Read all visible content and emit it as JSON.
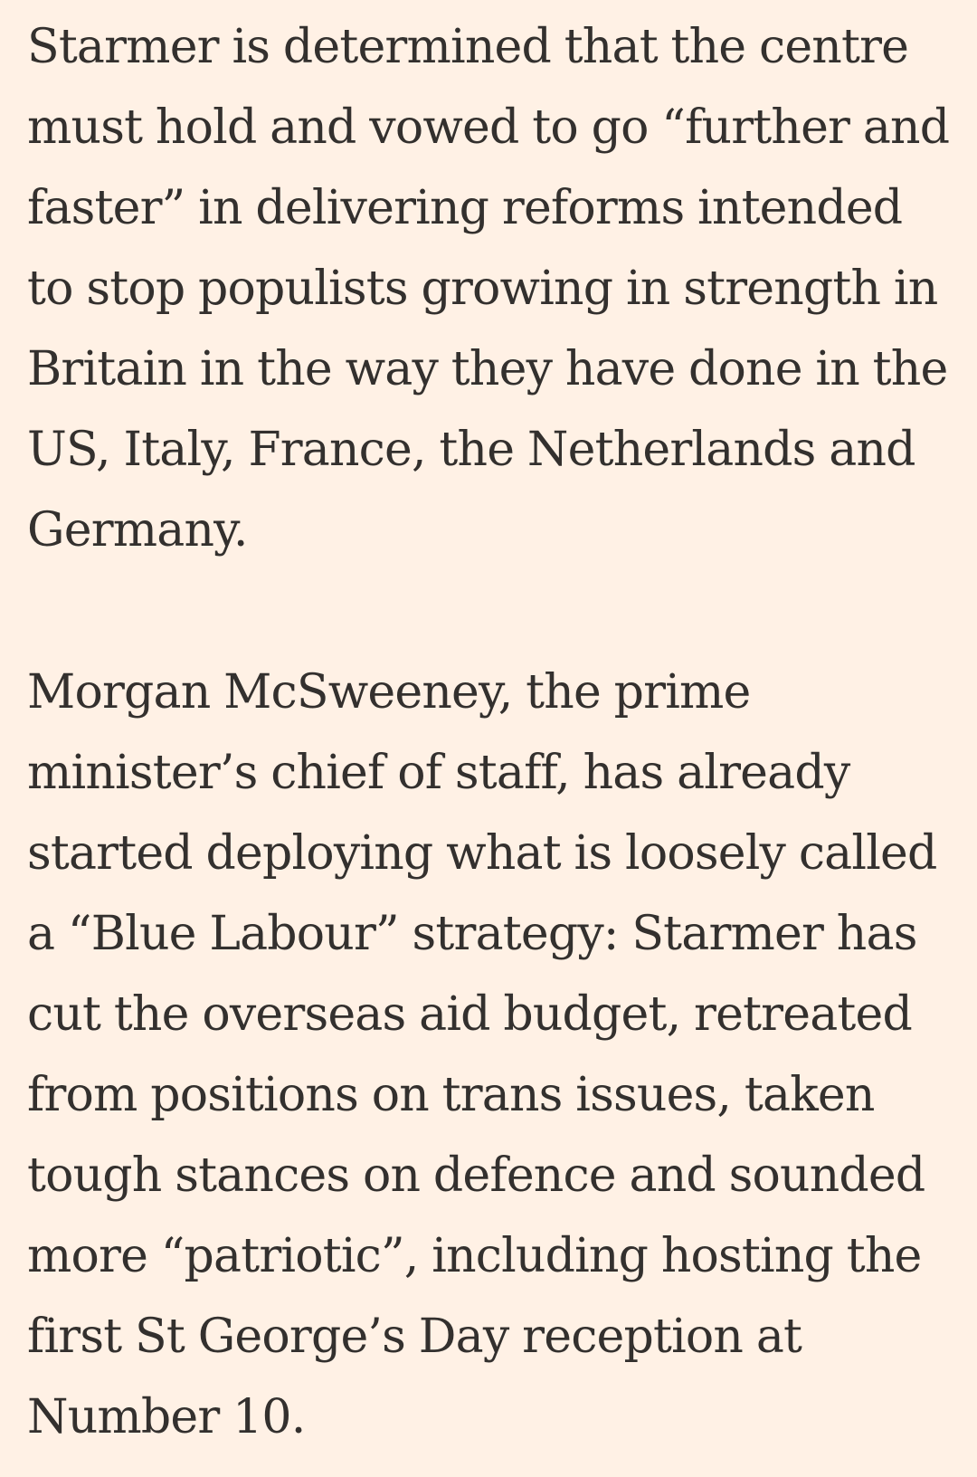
{
  "article": {
    "paragraphs": [
      "Starmer is determined that the centre must hold and vowed to go “further and faster” in delivering reforms intended to stop populists growing in strength in Britain in the way they have done in the US, Italy, France, the Netherlands and Germany.",
      "Morgan McSweeney, the prime minister’s chief of staff, has already started deploying what is loosely called a “Blue Labour” strategy: Starmer has cut the overseas aid budget, retreated from positions on trans issues, taken tough stances on defence and sounded more “patriotic”, including hosting the first St George’s Day reception at Number 10."
    ]
  },
  "colors": {
    "background": "#fff1e5",
    "text": "#33302e"
  }
}
